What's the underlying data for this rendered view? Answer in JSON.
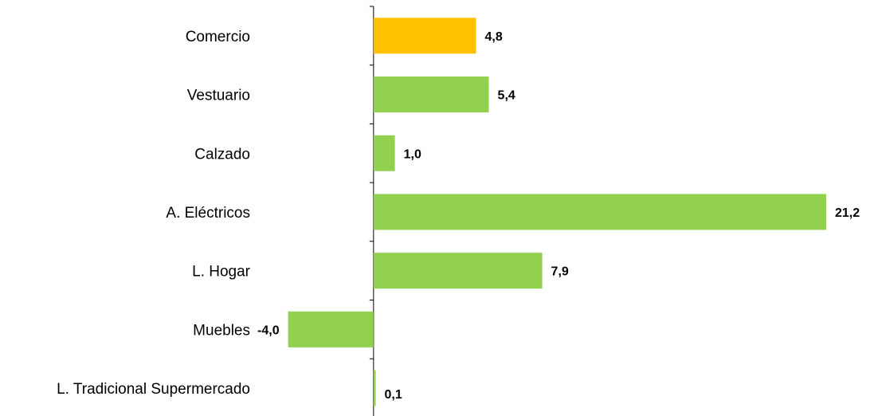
{
  "chart_data": {
    "type": "bar",
    "orientation": "horizontal",
    "title": "",
    "xlabel": "",
    "ylabel": "",
    "categories": [
      "Comercio",
      "Vestuario",
      "Calzado",
      "A. Eléctricos",
      "L. Hogar",
      "Muebles",
      "L. Tradicional Supermercado"
    ],
    "values": [
      4.8,
      5.4,
      1.0,
      21.2,
      7.9,
      -4.0,
      0.1
    ],
    "value_labels": [
      "4,8",
      "5,4",
      "1,0",
      "21,2",
      "7,9",
      "-4,0",
      "0,1"
    ],
    "bar_colors": [
      "#FFC000",
      "#92D050",
      "#92D050",
      "#92D050",
      "#92D050",
      "#92D050",
      "#92D050"
    ],
    "xlim": [
      -8.8,
      21.2
    ],
    "grid": false,
    "legend": "none"
  }
}
